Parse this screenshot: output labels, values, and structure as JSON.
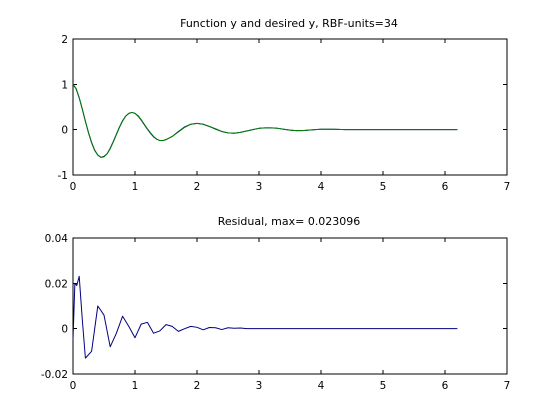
{
  "chart_data": [
    {
      "type": "line",
      "title": "Function y and desired y, RBF-units=34",
      "xlabel": "",
      "ylabel": "",
      "xlim": [
        0,
        7
      ],
      "ylim": [
        -1,
        2
      ],
      "xticks": [
        "0",
        "1",
        "2",
        "3",
        "4",
        "5",
        "6",
        "7"
      ],
      "yticks": [
        "-1",
        "0",
        "1",
        "2"
      ],
      "grid": false,
      "series": [
        {
          "color": "#000080",
          "x": [
            0,
            0.05,
            0.1,
            0.15,
            0.2,
            0.25,
            0.3,
            0.35,
            0.4,
            0.45,
            0.5,
            0.55,
            0.6,
            0.65,
            0.7,
            0.75,
            0.8,
            0.85,
            0.9,
            0.95,
            1.0,
            1.05,
            1.1,
            1.15,
            1.2,
            1.25,
            1.3,
            1.35,
            1.4,
            1.45,
            1.5,
            1.6,
            1.7,
            1.8,
            1.9,
            2.0,
            2.1,
            2.2,
            2.3,
            2.4,
            2.5,
            2.6,
            2.7,
            2.8,
            2.9,
            3.0,
            3.1,
            3.2,
            3.3,
            3.4,
            3.5,
            3.6,
            3.7,
            3.8,
            3.9,
            4.0,
            4.1,
            4.2,
            4.4,
            4.6,
            4.8,
            5.0,
            5.2,
            5.4,
            5.6,
            5.8,
            6.0,
            6.2
          ],
          "values": [
            1.0,
            0.9,
            0.7,
            0.45,
            0.18,
            -0.07,
            -0.29,
            -0.46,
            -0.56,
            -0.61,
            -0.59,
            -0.53,
            -0.41,
            -0.26,
            -0.1,
            0.06,
            0.2,
            0.3,
            0.36,
            0.38,
            0.36,
            0.3,
            0.21,
            0.11,
            0.01,
            -0.08,
            -0.16,
            -0.21,
            -0.24,
            -0.24,
            -0.22,
            -0.15,
            -0.04,
            0.06,
            0.12,
            0.14,
            0.12,
            0.07,
            0.01,
            -0.04,
            -0.07,
            -0.08,
            -0.06,
            -0.03,
            0.0,
            0.03,
            0.04,
            0.04,
            0.03,
            0.01,
            -0.01,
            -0.02,
            -0.02,
            -0.01,
            0.0,
            0.01,
            0.01,
            0.01,
            0.0,
            0.0,
            0.0,
            0.0,
            0.0,
            0.0,
            0.0,
            0.0,
            0.0,
            0.0
          ]
        },
        {
          "color": "#008000",
          "x": [
            0,
            0.05,
            0.1,
            0.15,
            0.2,
            0.25,
            0.3,
            0.35,
            0.4,
            0.45,
            0.5,
            0.55,
            0.6,
            0.65,
            0.7,
            0.75,
            0.8,
            0.85,
            0.9,
            0.95,
            1.0,
            1.05,
            1.1,
            1.15,
            1.2,
            1.25,
            1.3,
            1.35,
            1.4,
            1.45,
            1.5,
            1.6,
            1.7,
            1.8,
            1.9,
            2.0,
            2.1,
            2.2,
            2.3,
            2.4,
            2.5,
            2.6,
            2.7,
            2.8,
            2.9,
            3.0,
            3.1,
            3.2,
            3.3,
            3.4,
            3.5,
            3.6,
            3.7,
            3.8,
            3.9,
            4.0,
            4.1,
            4.2,
            4.4,
            4.6,
            4.8,
            5.0,
            5.2,
            5.4,
            5.6,
            5.8,
            6.0,
            6.2
          ],
          "values": [
            1.0,
            0.91,
            0.71,
            0.46,
            0.19,
            -0.06,
            -0.28,
            -0.45,
            -0.56,
            -0.61,
            -0.6,
            -0.53,
            -0.42,
            -0.27,
            -0.11,
            0.05,
            0.19,
            0.3,
            0.36,
            0.38,
            0.36,
            0.31,
            0.22,
            0.12,
            0.02,
            -0.07,
            -0.15,
            -0.21,
            -0.24,
            -0.24,
            -0.22,
            -0.15,
            -0.05,
            0.05,
            0.12,
            0.14,
            0.12,
            0.07,
            0.02,
            -0.04,
            -0.07,
            -0.08,
            -0.06,
            -0.03,
            0.0,
            0.03,
            0.04,
            0.04,
            0.03,
            0.01,
            -0.01,
            -0.02,
            -0.02,
            -0.01,
            0.0,
            0.01,
            0.01,
            0.01,
            0.0,
            0.0,
            0.0,
            0.0,
            0.0,
            0.0,
            0.0,
            0.0,
            0.0,
            0.0
          ]
        }
      ]
    },
    {
      "type": "line",
      "title": "Residual, max= 0.023096",
      "xlabel": "",
      "ylabel": "",
      "xlim": [
        0,
        7
      ],
      "ylim": [
        -0.02,
        0.04
      ],
      "xticks": [
        "0",
        "1",
        "2",
        "3",
        "4",
        "5",
        "6",
        "7"
      ],
      "yticks": [
        "-0.02",
        "0",
        "0.02",
        "0.04"
      ],
      "grid": false,
      "series": [
        {
          "color": "#000080",
          "x": [
            0,
            0.03,
            0.06,
            0.1,
            0.15,
            0.2,
            0.3,
            0.4,
            0.5,
            0.6,
            0.7,
            0.8,
            0.9,
            1.0,
            1.1,
            1.2,
            1.3,
            1.4,
            1.5,
            1.6,
            1.7,
            1.8,
            1.9,
            2.0,
            2.1,
            2.2,
            2.3,
            2.4,
            2.5,
            2.6,
            2.7,
            2.8,
            3.0,
            3.5,
            4.0,
            4.5,
            5.0,
            5.5,
            6.0,
            6.2
          ],
          "values": [
            -0.005,
            0.02,
            0.019,
            0.0231,
            0.004,
            -0.013,
            -0.01,
            0.01,
            0.006,
            -0.008,
            -0.002,
            0.0055,
            0.001,
            -0.004,
            0.002,
            0.0028,
            -0.002,
            -0.001,
            0.0018,
            0.001,
            -0.0012,
            0.0,
            0.001,
            0.0006,
            -0.0005,
            0.0005,
            0.0004,
            -0.0004,
            0.0004,
            0.0002,
            0.0003,
            0.0,
            0.0,
            0.0,
            0.0,
            0.0,
            0.0,
            0.0,
            0.0,
            0.0
          ]
        }
      ]
    }
  ]
}
